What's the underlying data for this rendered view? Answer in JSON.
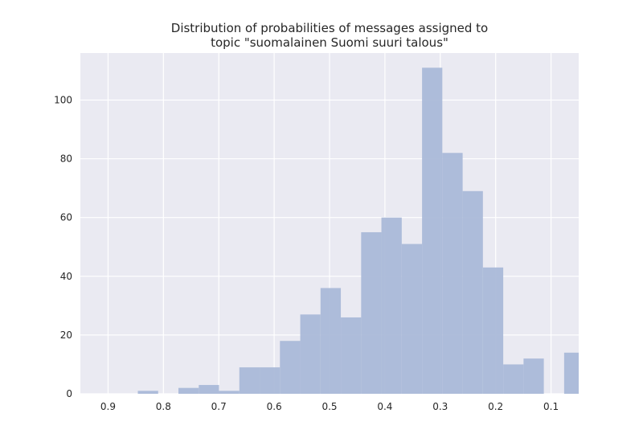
{
  "chart_data": {
    "type": "bar",
    "title_lines": [
      "Distribution of probabilities of messages assigned to",
      "topic \"suomalainen Suomi suuri talous\""
    ],
    "xlabel": "",
    "ylabel": "",
    "x_axis_reversed": true,
    "xlim": [
      0.95,
      0.05
    ],
    "ylim": [
      0,
      116
    ],
    "x_ticks": [
      0.9,
      0.8,
      0.7,
      0.6,
      0.5,
      0.4,
      0.3,
      0.2,
      0.1
    ],
    "x_tick_labels": [
      "0.9",
      "0.8",
      "0.7",
      "0.6",
      "0.5",
      "0.4",
      "0.3",
      "0.2",
      "0.1"
    ],
    "y_ticks": [
      0,
      20,
      40,
      60,
      80,
      100
    ],
    "y_tick_labels": [
      "0",
      "20",
      "40",
      "60",
      "80",
      "100"
    ],
    "grid": true,
    "background_color": "#eaeaf2",
    "grid_color": "#ffffff",
    "bar_color": "#aab9d8",
    "bins": [
      {
        "x_from": 0.8462,
        "x_to": 0.8095,
        "count": 1
      },
      {
        "x_from": 0.7729,
        "x_to": 0.7362,
        "count": 2
      },
      {
        "x_from": 0.7362,
        "x_to": 0.6996,
        "count": 3
      },
      {
        "x_from": 0.6996,
        "x_to": 0.6629,
        "count": 1
      },
      {
        "x_from": 0.6629,
        "x_to": 0.6262,
        "count": 9
      },
      {
        "x_from": 0.6262,
        "x_to": 0.5896,
        "count": 9
      },
      {
        "x_from": 0.5896,
        "x_to": 0.5529,
        "count": 18
      },
      {
        "x_from": 0.5529,
        "x_to": 0.5163,
        "count": 27
      },
      {
        "x_from": 0.5163,
        "x_to": 0.4796,
        "count": 36
      },
      {
        "x_from": 0.4796,
        "x_to": 0.4429,
        "count": 26
      },
      {
        "x_from": 0.4429,
        "x_to": 0.4063,
        "count": 55
      },
      {
        "x_from": 0.4063,
        "x_to": 0.3696,
        "count": 60
      },
      {
        "x_from": 0.3696,
        "x_to": 0.3329,
        "count": 51
      },
      {
        "x_from": 0.3329,
        "x_to": 0.2963,
        "count": 111
      },
      {
        "x_from": 0.2963,
        "x_to": 0.2596,
        "count": 82
      },
      {
        "x_from": 0.2596,
        "x_to": 0.223,
        "count": 69
      },
      {
        "x_from": 0.223,
        "x_to": 0.1863,
        "count": 43
      },
      {
        "x_from": 0.1863,
        "x_to": 0.1496,
        "count": 10
      },
      {
        "x_from": 0.1496,
        "x_to": 0.113,
        "count": 12
      },
      {
        "x_from": 0.0763,
        "x_to": 0.05,
        "count": 14
      }
    ]
  }
}
